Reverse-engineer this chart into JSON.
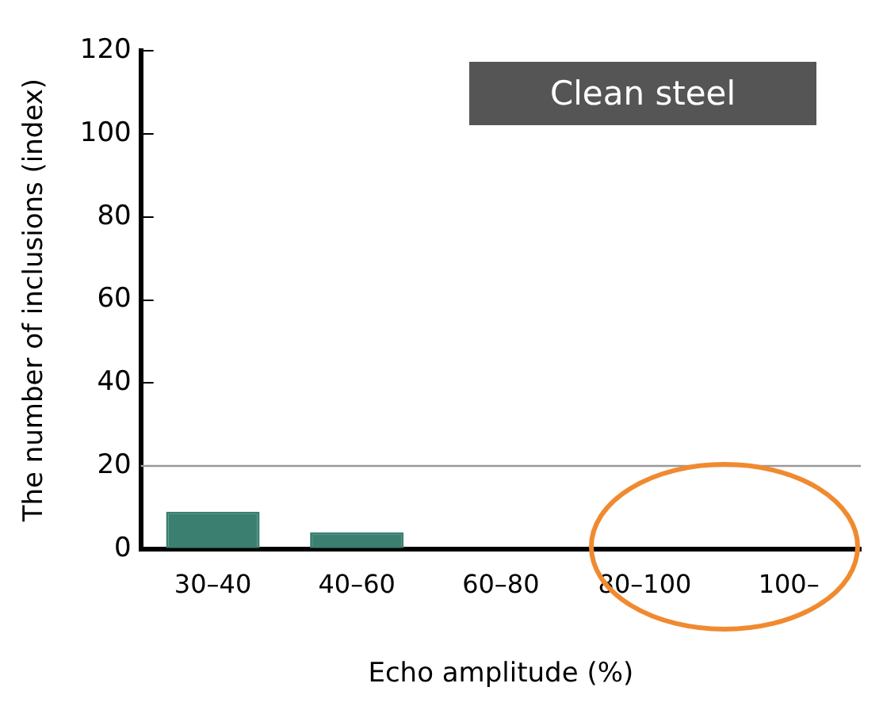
{
  "chart_data": {
    "type": "bar",
    "xlabel": "Echo amplitude (%)",
    "ylabel": "The number of inclusions (index)",
    "categories": [
      "30–40",
      "40–60",
      "60–80",
      "80–100",
      "100–"
    ],
    "values": [
      9,
      4,
      0,
      0,
      0
    ],
    "color": "#3a7f6f",
    "ylim": [
      0,
      120
    ],
    "yticks": [
      0,
      20,
      40,
      60,
      80,
      100,
      120
    ],
    "grid": false,
    "ref_lines": [
      {
        "axis": "y",
        "value": 20,
        "color": "#999999"
      }
    ],
    "annotations": [
      "Clean steel"
    ],
    "legend": false
  }
}
